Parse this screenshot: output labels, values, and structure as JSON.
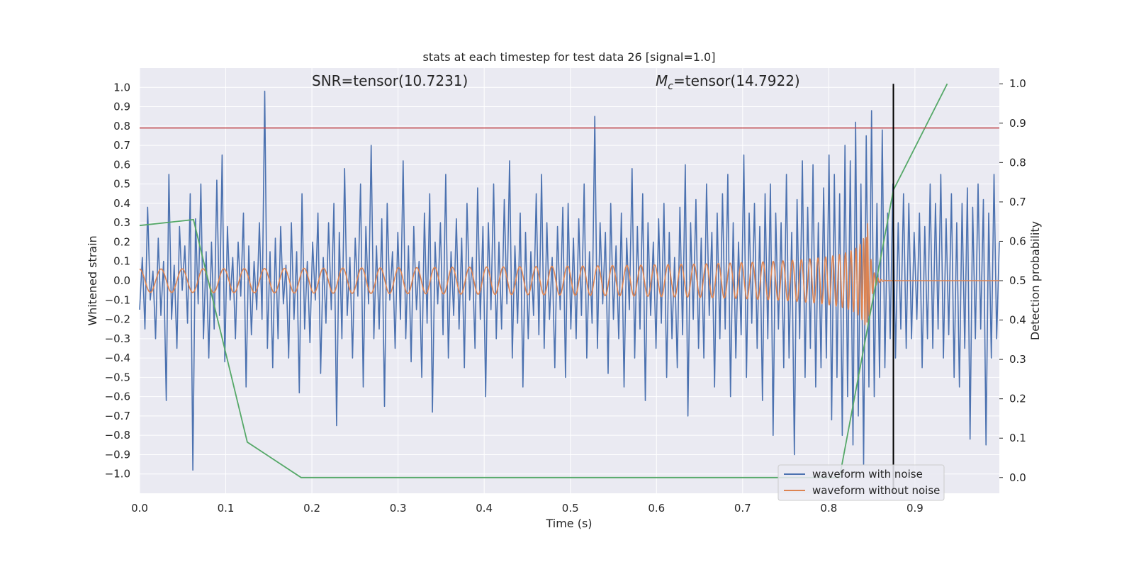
{
  "chart_data": {
    "type": "line",
    "title": "stats at each timestep for test data 26 [signal=1.0]",
    "xlabel": "Time (s)",
    "ylabel": "Whitened strain",
    "ylabel_right": "Detection probability",
    "xlim": [
      0.0,
      0.998
    ],
    "ylim": [
      -1.1,
      1.1
    ],
    "ylim_right": [
      -0.04,
      1.04
    ],
    "xticks": [
      "0.0",
      "0.1",
      "0.2",
      "0.3",
      "0.4",
      "0.5",
      "0.6",
      "0.7",
      "0.8",
      "0.9"
    ],
    "yticks": [
      "1.0",
      "0.9",
      "0.8",
      "0.7",
      "0.6",
      "0.5",
      "0.4",
      "0.3",
      "0.2",
      "0.1",
      "0.0",
      "−0.1",
      "−0.2",
      "−0.3",
      "−0.4",
      "−0.5",
      "−0.6",
      "−0.7",
      "−0.8",
      "−0.9",
      "−1.0"
    ],
    "yticks_right": [
      "1.0",
      "0.9",
      "0.8",
      "0.7",
      "0.6",
      "0.5",
      "0.4",
      "0.3",
      "0.2",
      "0.1",
      "0.0"
    ],
    "grid": true,
    "legend_position": "lower-right",
    "annotations": {
      "snr_label": "SNR=tensor(10.7231)",
      "mc_prefix": "M",
      "mc_subscript": "c",
      "mc_value": "=tensor(14.7922)"
    },
    "threshold": {
      "y": 0.79,
      "color": "#c44e52"
    },
    "vertical_marker": {
      "x": 0.875,
      "color": "#000000"
    },
    "series": [
      {
        "name": "waveform with noise",
        "color": "#4c72b0",
        "axis": "left",
        "x_start": 0.0,
        "x_end": 0.998,
        "values": [
          -0.15,
          0.12,
          -0.25,
          0.38,
          -0.1,
          0.05,
          -0.3,
          0.22,
          -0.18,
          0.1,
          -0.62,
          0.55,
          -0.2,
          0.08,
          -0.35,
          0.28,
          -0.05,
          0.18,
          -0.22,
          0.45,
          -0.98,
          0.32,
          -0.12,
          0.5,
          -0.3,
          0.15,
          -0.4,
          0.2,
          -0.25,
          0.52,
          -0.18,
          0.65,
          -0.42,
          0.28,
          -0.1,
          0.12,
          -0.3,
          0.2,
          -0.08,
          0.35,
          -0.55,
          0.18,
          -0.28,
          0.1,
          -0.15,
          0.3,
          -0.2,
          0.98,
          -0.35,
          0.15,
          -0.45,
          0.22,
          -0.3,
          0.28,
          -0.12,
          0.08,
          -0.4,
          0.3,
          -0.2,
          0.15,
          -0.58,
          0.45,
          -0.25,
          0.1,
          -0.32,
          0.2,
          -0.1,
          0.35,
          -0.48,
          0.12,
          -0.22,
          0.3,
          -0.15,
          0.4,
          -0.75,
          0.25,
          -0.3,
          0.58,
          -0.18,
          0.12,
          -0.4,
          0.22,
          -0.08,
          0.5,
          -0.55,
          0.28,
          -0.12,
          0.7,
          -0.3,
          0.18,
          -0.25,
          0.32,
          -0.65,
          0.4,
          -0.1,
          0.15,
          -0.35,
          0.25,
          -0.2,
          0.62,
          -0.3,
          0.18,
          -0.42,
          0.28,
          -0.15,
          0.1,
          -0.5,
          0.35,
          -0.22,
          0.45,
          -0.68,
          0.2,
          -0.12,
          0.3,
          -0.28,
          0.55,
          -0.4,
          0.15,
          -0.18,
          0.32,
          -0.25,
          0.22,
          -0.45,
          0.4,
          -0.1,
          0.12,
          -0.35,
          0.48,
          -0.2,
          0.28,
          -0.6,
          0.3,
          -0.15,
          0.5,
          -0.3,
          0.2,
          -0.25,
          0.42,
          -0.12,
          0.62,
          -0.4,
          0.18,
          -0.22,
          0.35,
          -0.55,
          0.25,
          -0.3,
          0.15,
          -0.18,
          0.45,
          -0.28,
          0.55,
          -0.35,
          0.3,
          -0.2,
          0.12,
          -0.45,
          0.28,
          -0.15,
          0.38,
          -0.5,
          0.4,
          -0.25,
          0.22,
          -0.3,
          0.32,
          -0.18,
          0.5,
          -0.4,
          0.15,
          -0.22,
          0.85,
          -0.35,
          0.3,
          -0.12,
          0.25,
          -0.48,
          0.4,
          -0.2,
          0.18,
          -0.3,
          0.35,
          -0.55,
          0.22,
          -0.15,
          0.58,
          -0.4,
          0.28,
          -0.25,
          0.45,
          -0.62,
          0.3,
          -0.18,
          0.2,
          -0.35,
          0.32,
          -0.22,
          0.4,
          -0.5,
          0.25,
          -0.3,
          0.12,
          -0.45,
          0.38,
          -0.28,
          0.6,
          -0.7,
          0.3,
          -0.2,
          0.42,
          -0.35,
          0.22,
          -0.4,
          0.5,
          -0.18,
          0.25,
          -0.55,
          0.35,
          -0.3,
          0.45,
          -0.25,
          0.55,
          -0.6,
          0.3,
          -0.4,
          0.2,
          -0.28,
          0.65,
          -0.5,
          0.35,
          -0.22,
          0.4,
          -0.35,
          0.28,
          -0.62,
          0.45,
          -0.3,
          0.5,
          -0.8,
          0.35,
          -0.25,
          0.3,
          -0.45,
          0.55,
          -0.4,
          0.25,
          -0.9,
          0.42,
          -0.3,
          0.62,
          -0.5,
          0.38,
          -0.35,
          0.6,
          -0.55,
          0.3,
          -0.45,
          0.48,
          -0.4,
          0.65,
          -0.72,
          0.55,
          -0.5,
          0.45,
          -0.8,
          0.7,
          -0.6,
          0.62,
          -0.85,
          0.82,
          -0.7,
          0.5,
          -0.95,
          0.75,
          -0.55,
          0.88,
          -0.6,
          0.4,
          -0.5,
          0.78,
          -0.45,
          0.35,
          -0.3,
          0.5,
          -0.4,
          0.3,
          -0.25,
          0.45,
          -0.35,
          0.4,
          -0.3,
          0.25,
          -0.2,
          0.35,
          -0.45,
          0.28,
          -0.3,
          0.5,
          -0.35,
          0.4,
          -0.25,
          0.55,
          -0.4,
          0.32,
          -0.28,
          0.45,
          -0.5,
          0.3,
          -0.55,
          0.4,
          -0.35,
          0.48,
          -0.82,
          0.38,
          -0.3,
          0.5,
          -0.25,
          0.42,
          -0.85,
          0.35,
          -0.4,
          0.55,
          -0.3,
          0.2
        ]
      },
      {
        "name": "waveform without noise",
        "color": "#dd8452",
        "axis": "left",
        "note_shape": "chirp until merger at t=0.845, flat near 0 afterwards"
      },
      {
        "name": "",
        "color": "#55a868",
        "axis": "right",
        "x": [
          0.0,
          0.0625,
          0.125,
          0.1875,
          0.8125,
          0.875,
          0.9375
        ],
        "values": [
          0.64,
          0.655,
          0.09,
          0.0,
          0.0,
          0.73,
          1.0
        ]
      }
    ],
    "colors": {
      "plot_bg": "#eaeaf2",
      "grid": "#ffffff",
      "text": "#262626",
      "legend_bg": "#eaeaf2",
      "legend_border": "#cccccc"
    }
  }
}
